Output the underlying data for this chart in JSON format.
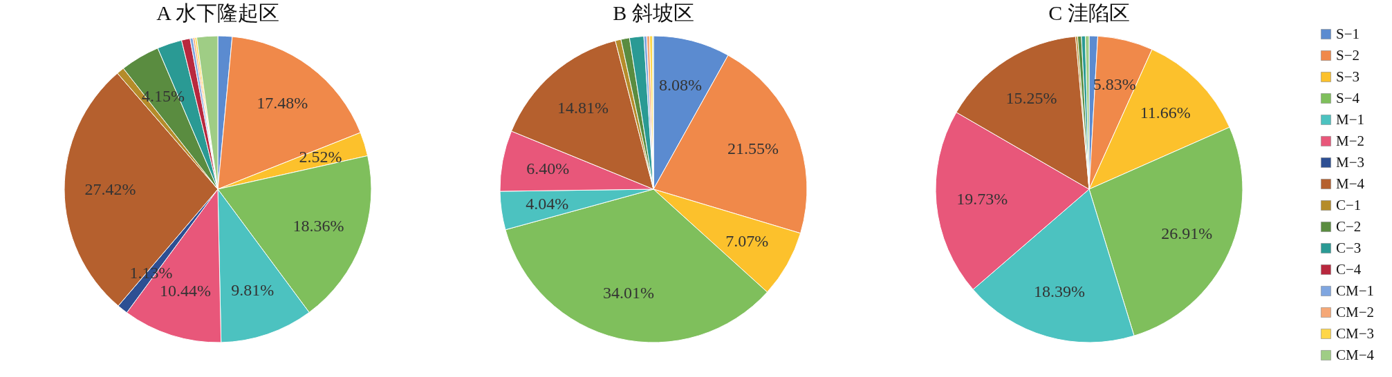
{
  "chart_data": {
    "type": "pie",
    "categories": [
      "S−1",
      "S−2",
      "S−3",
      "S−4",
      "M−1",
      "M−2",
      "M−3",
      "M−4",
      "C−1",
      "C−2",
      "C−3",
      "C−4",
      "CM−1",
      "CM−2",
      "CM−3",
      "CM−4"
    ],
    "colors": [
      "#5b8bd0",
      "#f0894a",
      "#fcc12c",
      "#7fbf5c",
      "#4cc2c0",
      "#e8577a",
      "#2d4f93",
      "#b5602e",
      "#b58c2a",
      "#5a8c40",
      "#2a9a94",
      "#b8283e",
      "#7fa6e0",
      "#f5a877",
      "#fed648",
      "#9fcd85"
    ],
    "legend": "right",
    "series": [
      {
        "name": "A 水下隆起区",
        "values": [
          1.5,
          17.48,
          2.52,
          18.36,
          9.81,
          10.44,
          1.13,
          27.42,
          0.8,
          4.15,
          2.6,
          0.9,
          0.3,
          0.2,
          0.2,
          2.2
        ],
        "value_labels": [
          null,
          "17.48%",
          "2.52%",
          "18.36%",
          "9.81%",
          "10.44%",
          "1.13%",
          "27.42%",
          null,
          "4.15%",
          null,
          null,
          null,
          null,
          null,
          null
        ]
      },
      {
        "name": "B 斜坡区",
        "values": [
          8.08,
          21.55,
          7.07,
          34.01,
          4.04,
          6.4,
          null,
          14.81,
          0.6,
          0.9,
          1.5,
          null,
          0.3,
          0.3,
          0.3,
          0.1
        ],
        "value_labels": [
          "8.08%",
          "21.55%",
          "7.07%",
          "34.01%",
          "4.04%",
          "6.40%",
          null,
          "14.81%",
          null,
          null,
          null,
          null,
          null,
          null,
          null,
          null
        ]
      },
      {
        "name": "C 洼陷区",
        "values": [
          0.9,
          5.83,
          11.66,
          26.91,
          18.39,
          19.73,
          null,
          15.25,
          0.2,
          0.4,
          0.4,
          null,
          null,
          null,
          null,
          0.4
        ],
        "value_labels": [
          null,
          "5.83%",
          "11.66%",
          "26.91%",
          "18.39%",
          "19.73%",
          null,
          "15.25%",
          null,
          null,
          null,
          null,
          null,
          null,
          null,
          null
        ]
      }
    ]
  }
}
